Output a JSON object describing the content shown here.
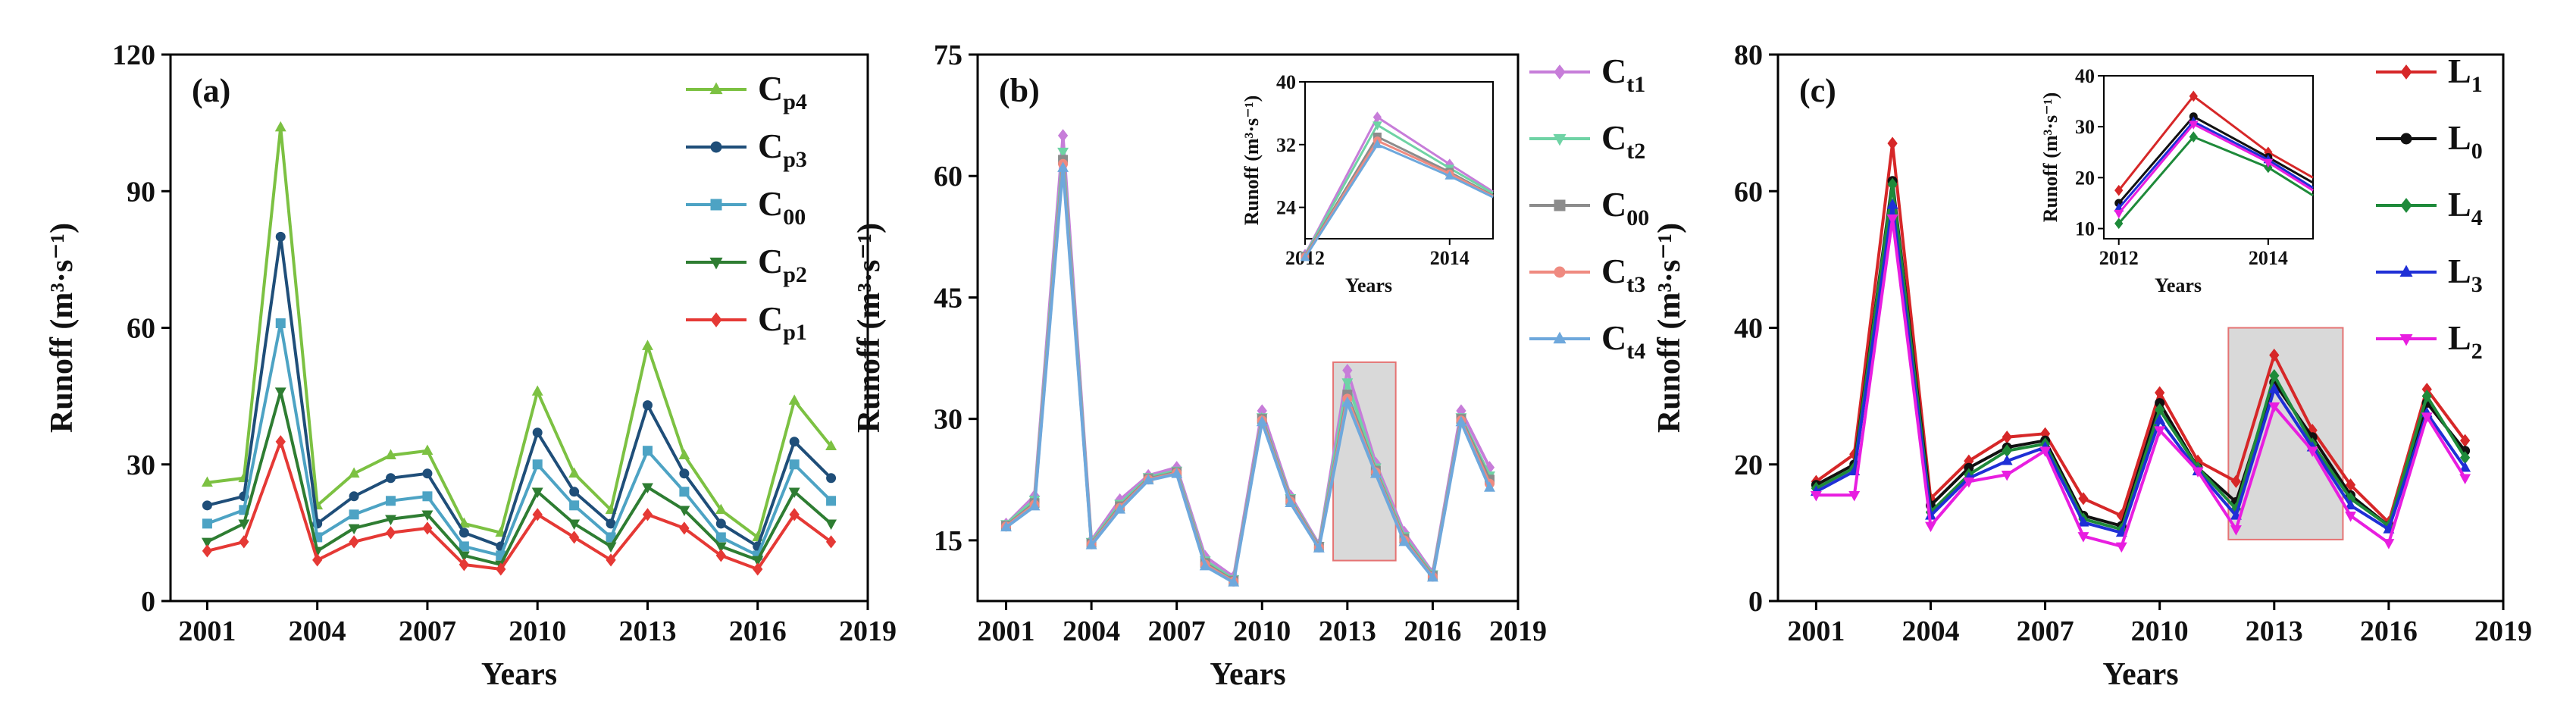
{
  "chart_data": [
    {
      "type": "line",
      "panel_label": "(a)",
      "xlabel": "Years",
      "ylabel": "Runoff (m³·s⁻¹)",
      "xlim": [
        2000,
        2019
      ],
      "ylim": [
        0,
        120
      ],
      "xticks": [
        2001,
        2004,
        2007,
        2010,
        2013,
        2016,
        2019
      ],
      "yticks": [
        0,
        30,
        60,
        90,
        120
      ],
      "x": [
        2001,
        2002,
        2003,
        2004,
        2005,
        2006,
        2007,
        2008,
        2009,
        2010,
        2011,
        2012,
        2013,
        2014,
        2015,
        2016,
        2017,
        2018
      ],
      "legend_position": "top-right",
      "series": [
        {
          "name": "C",
          "sub": "p4",
          "color": "#7cc142",
          "marker": "triangle",
          "values": [
            26,
            27,
            104,
            21,
            28,
            32,
            33,
            17,
            15,
            46,
            28,
            20,
            56,
            32,
            20,
            14,
            44,
            34
          ]
        },
        {
          "name": "C",
          "sub": "p3",
          "color": "#1f4e79",
          "marker": "circle",
          "values": [
            21,
            23,
            80,
            17,
            23,
            27,
            28,
            15,
            12,
            37,
            24,
            17,
            43,
            28,
            17,
            12,
            35,
            27
          ]
        },
        {
          "name": "C",
          "sub": "00",
          "color": "#4da3c4",
          "marker": "square",
          "values": [
            17,
            20,
            61,
            14,
            19,
            22,
            23,
            12,
            10,
            30,
            21,
            14,
            33,
            24,
            14,
            10,
            30,
            22
          ]
        },
        {
          "name": "C",
          "sub": "p2",
          "color": "#2e7d32",
          "marker": "triangle-down",
          "values": [
            13,
            17,
            46,
            11,
            16,
            18,
            19,
            10,
            8,
            24,
            17,
            12,
            25,
            20,
            12,
            9,
            24,
            17
          ]
        },
        {
          "name": "C",
          "sub": "p1",
          "color": "#e53935",
          "marker": "diamond",
          "values": [
            11,
            13,
            35,
            9,
            13,
            15,
            16,
            8,
            7,
            19,
            14,
            9,
            19,
            16,
            10,
            7,
            19,
            13
          ]
        }
      ]
    },
    {
      "type": "line",
      "panel_label": "(b)",
      "xlabel": "Years",
      "ylabel": "Runoff (m³·s⁻¹)",
      "xlim": [
        2000,
        2019
      ],
      "ylim": [
        7.5,
        75
      ],
      "xticks": [
        2001,
        2004,
        2007,
        2010,
        2013,
        2016,
        2019
      ],
      "yticks": [
        15,
        30,
        45,
        60,
        75
      ],
      "x": [
        2001,
        2002,
        2003,
        2004,
        2005,
        2006,
        2007,
        2008,
        2009,
        2010,
        2011,
        2012,
        2013,
        2014,
        2015,
        2016,
        2017,
        2018
      ],
      "highlight": {
        "x": [
          2012.5,
          2014.7
        ],
        "y": [
          12.5,
          37
        ]
      },
      "legend_position": "top-right",
      "series": [
        {
          "name": "C",
          "sub": "t1",
          "color": "#c77dd9",
          "marker": "diamond",
          "values": [
            17,
            20.5,
            65,
            15,
            20,
            23,
            24,
            13,
            10.5,
            31,
            20.5,
            14.5,
            36,
            24.5,
            16,
            11,
            31,
            24
          ]
        },
        {
          "name": "C",
          "sub": "t2",
          "color": "#6fd3a5",
          "marker": "triangle-down",
          "values": [
            17,
            20,
            63,
            14.8,
            19.5,
            22.8,
            23.6,
            12.5,
            10.2,
            30.2,
            20.2,
            14.3,
            34.5,
            24,
            15.5,
            10.8,
            30.2,
            23
          ]
        },
        {
          "name": "C",
          "sub": "00",
          "color": "#8c8c8c",
          "marker": "square",
          "values": [
            16.8,
            19.6,
            62,
            14.6,
            19.2,
            22.6,
            23.4,
            12.2,
            10,
            30,
            20,
            14.2,
            33,
            23.6,
            15.2,
            10.6,
            30,
            22.5
          ]
        },
        {
          "name": "C",
          "sub": "t3",
          "color": "#ef8a80",
          "marker": "circle",
          "values": [
            16.7,
            19.4,
            61.5,
            14.5,
            19,
            22.5,
            23.3,
            12,
            9.9,
            29.8,
            19.8,
            14.1,
            32.5,
            23.4,
            15,
            10.5,
            29.8,
            22
          ]
        },
        {
          "name": "C",
          "sub": "t4",
          "color": "#6ea8dc",
          "marker": "triangle",
          "values": [
            16.6,
            19.2,
            61,
            14.4,
            18.8,
            22.4,
            23.2,
            11.8,
            9.8,
            29.6,
            19.6,
            14,
            32,
            23.2,
            14.8,
            10.4,
            29.6,
            21.5
          ]
        }
      ],
      "inset": {
        "xlabel": "Years",
        "ylabel": "Runoff (m³·s⁻¹)",
        "xlim": [
          2012,
          2014.6
        ],
        "ylim": [
          20,
          40
        ],
        "xticks": [
          2012,
          2014
        ],
        "yticks": [
          24,
          32,
          40
        ],
        "x": [
          2012,
          2013,
          2014,
          2014.6
        ],
        "series_values": [
          [
            18,
            35.5,
            29.5,
            26
          ],
          [
            17.9,
            34.5,
            29,
            25.8
          ],
          [
            17.8,
            33,
            28.5,
            25.5
          ],
          [
            17.7,
            32.5,
            28.3,
            25.4
          ],
          [
            17.6,
            32,
            28,
            25.3
          ]
        ]
      }
    },
    {
      "type": "line",
      "panel_label": "(c)",
      "xlabel": "Years",
      "ylabel": "Runoff (m³·s⁻¹)",
      "xlim": [
        2000,
        2019
      ],
      "ylim": [
        0,
        80
      ],
      "xticks": [
        2001,
        2004,
        2007,
        2010,
        2013,
        2016,
        2019
      ],
      "yticks": [
        0,
        20,
        40,
        60,
        80
      ],
      "x": [
        2001,
        2002,
        2003,
        2004,
        2005,
        2006,
        2007,
        2008,
        2009,
        2010,
        2011,
        2012,
        2013,
        2014,
        2015,
        2016,
        2017,
        2018
      ],
      "highlight": {
        "x": [
          2011.8,
          2014.8
        ],
        "y": [
          9,
          40
        ]
      },
      "legend_position": "top-right",
      "series": [
        {
          "name": "L",
          "sub": "1",
          "color": "#d62728",
          "marker": "diamond",
          "values": [
            17.5,
            21.5,
            67,
            15,
            20.5,
            24,
            24.5,
            15,
            12.5,
            30.5,
            20.5,
            17.5,
            36,
            25,
            17,
            11.5,
            31,
            23.5
          ]
        },
        {
          "name": "L",
          "sub": "0",
          "color": "#111111",
          "marker": "circle",
          "values": [
            17,
            20,
            61.5,
            14,
            19.5,
            22.5,
            23.5,
            12.5,
            11,
            29,
            19.5,
            14.5,
            32,
            24,
            15.5,
            11,
            29,
            22
          ]
        },
        {
          "name": "L",
          "sub": "4",
          "color": "#1e8a3a",
          "marker": "diamond",
          "values": [
            16.5,
            19.5,
            61,
            13,
            18.5,
            22,
            23,
            12,
            10.5,
            28,
            19.5,
            13.5,
            33,
            23,
            15,
            11,
            30,
            21
          ]
        },
        {
          "name": "L",
          "sub": "3",
          "color": "#1f2fd6",
          "marker": "triangle",
          "values": [
            16,
            19,
            58,
            12.5,
            18,
            20.5,
            22.5,
            11.5,
            10,
            26.5,
            19,
            12.5,
            31,
            22.5,
            14,
            10.5,
            27.5,
            19.5
          ]
        },
        {
          "name": "L",
          "sub": "2",
          "color": "#e81ee0",
          "marker": "triangle-down",
          "values": [
            15.5,
            15.5,
            56,
            11,
            17.5,
            18.5,
            22,
            9.5,
            8,
            25,
            19,
            10.5,
            28.5,
            22,
            12.5,
            8.5,
            27,
            18
          ]
        }
      ],
      "inset": {
        "xlabel": "Years",
        "ylabel": "Runoff (m³·s⁻¹)",
        "xlim": [
          2011.8,
          2014.6
        ],
        "ylim": [
          8,
          40
        ],
        "xticks": [
          2012,
          2014
        ],
        "yticks": [
          10,
          20,
          30,
          40
        ],
        "x": [
          2012,
          2013,
          2014,
          2014.6
        ],
        "series_values": [
          [
            17.5,
            36,
            25,
            20
          ],
          [
            15,
            32,
            24,
            19
          ],
          [
            11,
            28,
            22,
            16.5
          ],
          [
            14,
            31,
            23.5,
            18
          ],
          [
            13,
            30.5,
            23,
            17.5
          ]
        ]
      }
    }
  ]
}
